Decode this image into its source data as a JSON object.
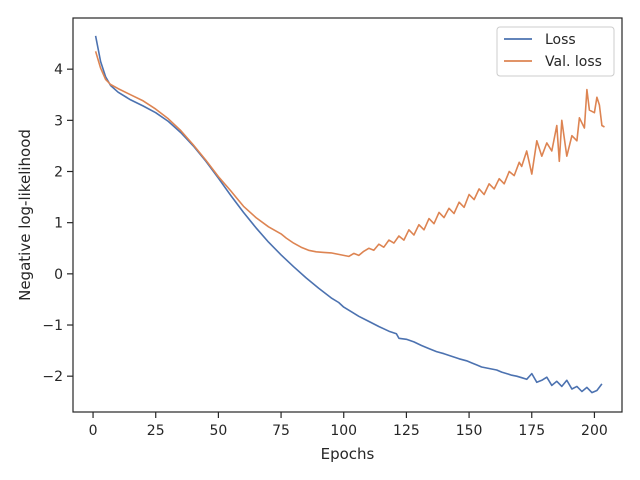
{
  "chart_data": {
    "type": "line",
    "title": "",
    "xlabel": "Epochs",
    "ylabel": "Negative log-likelihood",
    "xlim": [
      -8,
      211
    ],
    "ylim": [
      -2.7,
      5.0
    ],
    "xticks": [
      0,
      25,
      50,
      75,
      100,
      125,
      150,
      175,
      200
    ],
    "yticks": [
      -2,
      -1,
      0,
      1,
      2,
      3,
      4
    ],
    "xtick_labels": [
      "0",
      "25",
      "50",
      "75",
      "100",
      "125",
      "150",
      "175",
      "200"
    ],
    "ytick_labels": [
      "−2",
      "−1",
      "0",
      "1",
      "2",
      "3",
      "4"
    ],
    "grid": false,
    "legend": {
      "placement": "top-right"
    },
    "series": [
      {
        "name": "Loss",
        "color": "#4c72b0",
        "points": [
          [
            1,
            4.65
          ],
          [
            3,
            4.15
          ],
          [
            5,
            3.85
          ],
          [
            7,
            3.68
          ],
          [
            10,
            3.55
          ],
          [
            15,
            3.4
          ],
          [
            20,
            3.28
          ],
          [
            25,
            3.15
          ],
          [
            30,
            2.98
          ],
          [
            35,
            2.76
          ],
          [
            40,
            2.5
          ],
          [
            45,
            2.2
          ],
          [
            50,
            1.87
          ],
          [
            55,
            1.53
          ],
          [
            60,
            1.2
          ],
          [
            65,
            0.9
          ],
          [
            70,
            0.62
          ],
          [
            75,
            0.37
          ],
          [
            80,
            0.14
          ],
          [
            85,
            -0.08
          ],
          [
            90,
            -0.28
          ],
          [
            95,
            -0.47
          ],
          [
            98,
            -0.56
          ],
          [
            100,
            -0.65
          ],
          [
            103,
            -0.74
          ],
          [
            106,
            -0.83
          ],
          [
            110,
            -0.93
          ],
          [
            114,
            -1.03
          ],
          [
            118,
            -1.12
          ],
          [
            121,
            -1.17
          ],
          [
            122,
            -1.26
          ],
          [
            125,
            -1.28
          ],
          [
            128,
            -1.33
          ],
          [
            131,
            -1.4
          ],
          [
            134,
            -1.46
          ],
          [
            137,
            -1.52
          ],
          [
            140,
            -1.56
          ],
          [
            143,
            -1.61
          ],
          [
            146,
            -1.66
          ],
          [
            149,
            -1.7
          ],
          [
            151,
            -1.74
          ],
          [
            153,
            -1.78
          ],
          [
            155,
            -1.82
          ],
          [
            157,
            -1.84
          ],
          [
            159,
            -1.86
          ],
          [
            161,
            -1.88
          ],
          [
            163,
            -1.92
          ],
          [
            165,
            -1.95
          ],
          [
            167,
            -1.98
          ],
          [
            169,
            -2.0
          ],
          [
            171,
            -2.03
          ],
          [
            173,
            -2.06
          ],
          [
            175,
            -1.95
          ],
          [
            177,
            -2.12
          ],
          [
            179,
            -2.08
          ],
          [
            181,
            -2.02
          ],
          [
            183,
            -2.18
          ],
          [
            185,
            -2.1
          ],
          [
            187,
            -2.2
          ],
          [
            189,
            -2.08
          ],
          [
            191,
            -2.25
          ],
          [
            193,
            -2.2
          ],
          [
            195,
            -2.3
          ],
          [
            197,
            -2.22
          ],
          [
            199,
            -2.32
          ],
          [
            201,
            -2.28
          ],
          [
            203,
            -2.15
          ]
        ]
      },
      {
        "name": "Val. loss",
        "color": "#dd8452",
        "points": [
          [
            1,
            4.35
          ],
          [
            3,
            4.02
          ],
          [
            5,
            3.8
          ],
          [
            7,
            3.7
          ],
          [
            10,
            3.62
          ],
          [
            15,
            3.5
          ],
          [
            20,
            3.38
          ],
          [
            25,
            3.22
          ],
          [
            30,
            3.03
          ],
          [
            35,
            2.8
          ],
          [
            40,
            2.52
          ],
          [
            45,
            2.22
          ],
          [
            50,
            1.9
          ],
          [
            55,
            1.62
          ],
          [
            57,
            1.5
          ],
          [
            60,
            1.32
          ],
          [
            65,
            1.1
          ],
          [
            70,
            0.92
          ],
          [
            75,
            0.78
          ],
          [
            77,
            0.7
          ],
          [
            80,
            0.6
          ],
          [
            83,
            0.52
          ],
          [
            86,
            0.46
          ],
          [
            89,
            0.43
          ],
          [
            92,
            0.42
          ],
          [
            95,
            0.41
          ],
          [
            98,
            0.38
          ],
          [
            100,
            0.36
          ],
          [
            102,
            0.34
          ],
          [
            104,
            0.4
          ],
          [
            106,
            0.36
          ],
          [
            108,
            0.44
          ],
          [
            110,
            0.5
          ],
          [
            112,
            0.46
          ],
          [
            114,
            0.58
          ],
          [
            116,
            0.52
          ],
          [
            118,
            0.66
          ],
          [
            120,
            0.6
          ],
          [
            122,
            0.74
          ],
          [
            124,
            0.66
          ],
          [
            126,
            0.86
          ],
          [
            128,
            0.76
          ],
          [
            130,
            0.96
          ],
          [
            132,
            0.86
          ],
          [
            134,
            1.08
          ],
          [
            136,
            0.98
          ],
          [
            138,
            1.2
          ],
          [
            140,
            1.1
          ],
          [
            142,
            1.28
          ],
          [
            144,
            1.18
          ],
          [
            146,
            1.4
          ],
          [
            148,
            1.3
          ],
          [
            150,
            1.55
          ],
          [
            152,
            1.45
          ],
          [
            154,
            1.66
          ],
          [
            156,
            1.55
          ],
          [
            158,
            1.76
          ],
          [
            160,
            1.66
          ],
          [
            162,
            1.86
          ],
          [
            164,
            1.76
          ],
          [
            166,
            2.0
          ],
          [
            168,
            1.92
          ],
          [
            170,
            2.18
          ],
          [
            171,
            2.1
          ],
          [
            173,
            2.4
          ],
          [
            175,
            1.95
          ],
          [
            177,
            2.6
          ],
          [
            179,
            2.3
          ],
          [
            181,
            2.56
          ],
          [
            183,
            2.4
          ],
          [
            185,
            2.9
          ],
          [
            186,
            2.2
          ],
          [
            187,
            3.0
          ],
          [
            189,
            2.3
          ],
          [
            191,
            2.7
          ],
          [
            193,
            2.6
          ],
          [
            194,
            3.05
          ],
          [
            196,
            2.85
          ],
          [
            197,
            3.6
          ],
          [
            198,
            3.2
          ],
          [
            200,
            3.15
          ],
          [
            201,
            3.45
          ],
          [
            202,
            3.3
          ],
          [
            203,
            2.9
          ],
          [
            204,
            2.87
          ]
        ]
      }
    ]
  }
}
